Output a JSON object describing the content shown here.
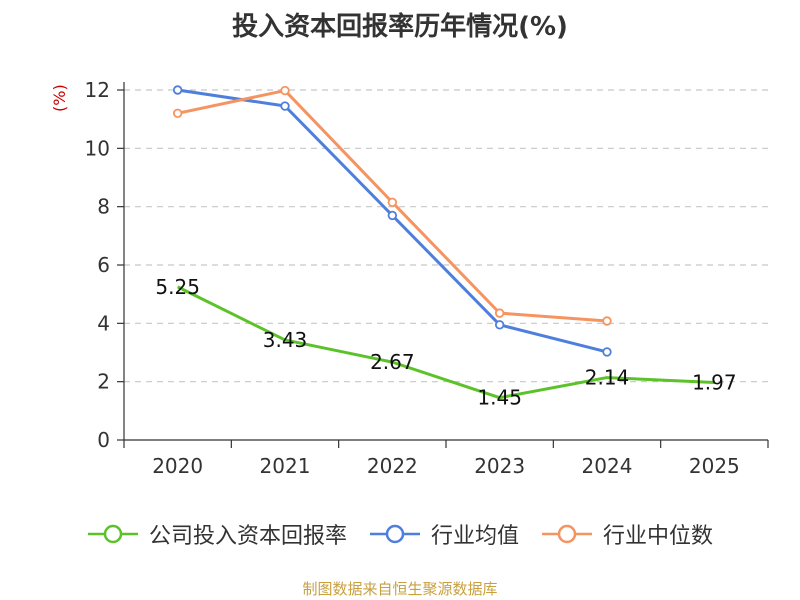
{
  "chart_data": {
    "type": "line",
    "title": "投入资本回报率历年情况(%)",
    "ylabel": "(%)",
    "xlabel": "",
    "categories": [
      "2020",
      "2021",
      "2022",
      "2023",
      "2024",
      "2025"
    ],
    "ylim": [
      0,
      12
    ],
    "yticks": [
      0,
      2,
      4,
      6,
      8,
      10,
      12
    ],
    "grid": true,
    "legend_position": "bottom",
    "series": [
      {
        "name": "公司投入资本回报率",
        "color": "#5cc22a",
        "values": [
          5.25,
          3.43,
          2.67,
          1.45,
          2.14,
          1.97
        ],
        "labels": [
          "5.25",
          "3.43",
          "2.67",
          "1.45",
          "2.14",
          "1.97"
        ],
        "show_markers": false,
        "show_labels": true
      },
      {
        "name": "行业均值",
        "color": "#4e7fdc",
        "values": [
          12.0,
          11.45,
          7.7,
          3.95,
          3.02,
          null
        ],
        "show_markers": true,
        "show_labels": false
      },
      {
        "name": "行业中位数",
        "color": "#f59460",
        "values": [
          11.2,
          11.98,
          8.15,
          4.35,
          4.08,
          null
        ],
        "show_markers": true,
        "show_labels": false
      }
    ]
  },
  "footer": "制图数据来自恒生聚源数据库"
}
